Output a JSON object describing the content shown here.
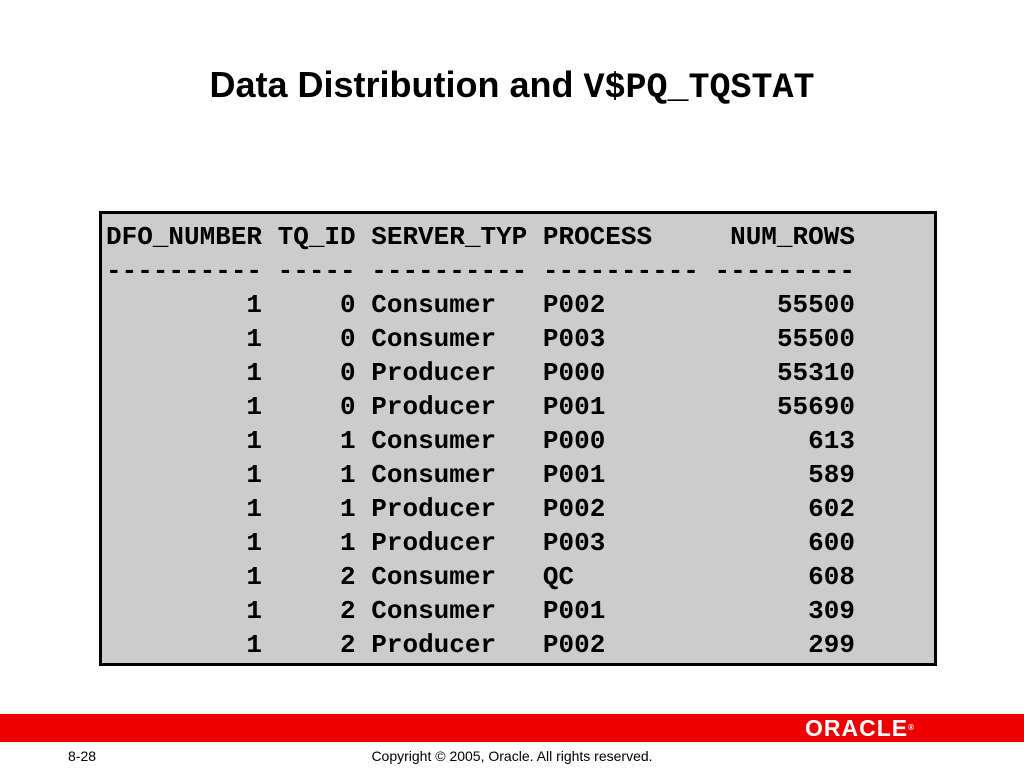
{
  "slide": {
    "title_text": "Data Distribution and ",
    "title_code": "V$PQ_TQSTAT"
  },
  "query_output": {
    "header": "DFO_NUMBER TQ_ID SERVER_TYP PROCESS     NUM_ROWS",
    "separator": "---------- ----- ---------- ---------- ---------",
    "columns": [
      "DFO_NUMBER",
      "TQ_ID",
      "SERVER_TYP",
      "PROCESS",
      "NUM_ROWS"
    ],
    "rows": [
      [
        "1",
        "0",
        "Consumer",
        "P002",
        "55500"
      ],
      [
        "1",
        "0",
        "Consumer",
        "P003",
        "55500"
      ],
      [
        "1",
        "0",
        "Producer",
        "P000",
        "55310"
      ],
      [
        "1",
        "0",
        "Producer",
        "P001",
        "55690"
      ],
      [
        "1",
        "1",
        "Consumer",
        "P000",
        "613"
      ],
      [
        "1",
        "1",
        "Consumer",
        "P001",
        "589"
      ],
      [
        "1",
        "1",
        "Producer",
        "P002",
        "602"
      ],
      [
        "1",
        "1",
        "Producer",
        "P003",
        "600"
      ],
      [
        "1",
        "2",
        "Consumer",
        "QC",
        "608"
      ],
      [
        "1",
        "2",
        "Consumer",
        "P001",
        "309"
      ],
      [
        "1",
        "2",
        "Producer",
        "P002",
        "299"
      ]
    ]
  },
  "footer": {
    "page_number": "8-28",
    "copyright": "Copyright © 2005, Oracle. All rights reserved.",
    "logo_text": "ORACLE",
    "logo_mark": "®"
  },
  "colors": {
    "footer_bar": "#ee0000",
    "output_background": "#cccccc",
    "output_border": "#000000"
  }
}
